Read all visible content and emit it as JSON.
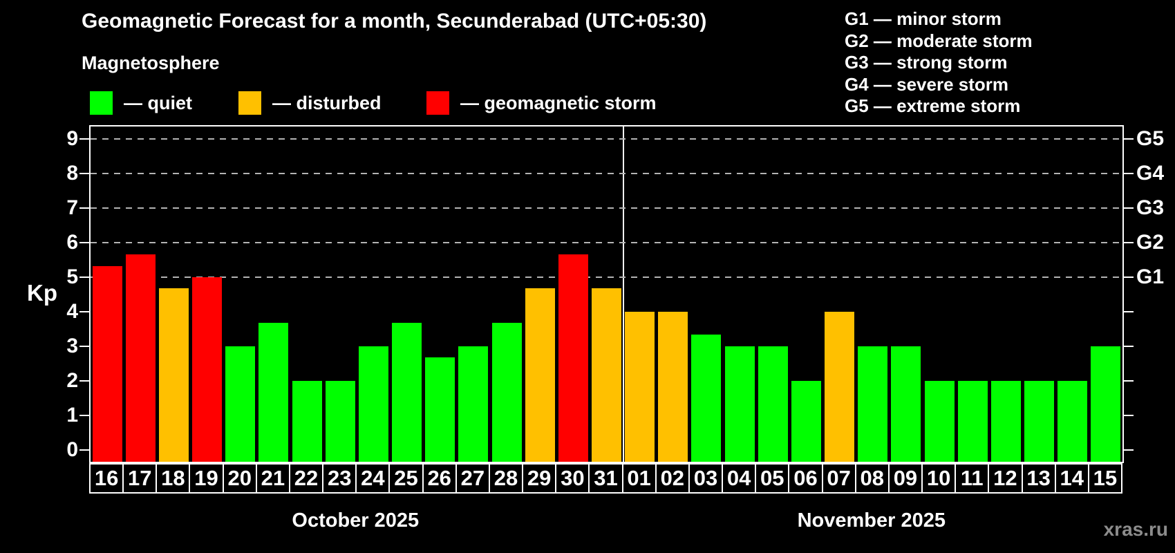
{
  "header": {
    "title": "Geomagnetic Forecast for a month, Secunderabad (UTC+05:30)",
    "subtitle": "Magnetosphere"
  },
  "magnetosphere_legend": [
    {
      "key": "quiet",
      "label": "— quiet",
      "color": "#00ff00"
    },
    {
      "key": "disturbed",
      "label": "— disturbed",
      "color": "#ffc000"
    },
    {
      "key": "storm",
      "label": "— geomagnetic storm",
      "color": "#ff0000"
    }
  ],
  "g_scale_legend": [
    "G1 — minor storm",
    "G2 — moderate storm",
    "G3 — strong storm",
    "G4 — severe storm",
    "G5 — extreme storm"
  ],
  "watermark": "xras.ru",
  "chart_data": {
    "type": "bar",
    "title": "Geomagnetic Forecast for a month, Secunderabad (UTC+05:30)",
    "ylabel": "Kp",
    "ylim": [
      0,
      9.4
    ],
    "yticks": [
      0,
      1,
      2,
      3,
      4,
      5,
      6,
      7,
      8,
      9
    ],
    "grid_levels_kp": [
      5,
      6,
      7,
      8,
      9
    ],
    "grid_style": "dashed",
    "legend_position": "top-left",
    "right_axis": [
      {
        "label": "G1",
        "kp": 5
      },
      {
        "label": "G2",
        "kp": 6
      },
      {
        "label": "G3",
        "kp": 7
      },
      {
        "label": "G4",
        "kp": 8
      },
      {
        "label": "G5",
        "kp": 9
      }
    ],
    "colors": {
      "quiet": "#00ff00",
      "disturbed": "#ffc000",
      "storm": "#ff0000"
    },
    "months": [
      {
        "label": "October 2025",
        "days": [
          {
            "day": "16",
            "kp": 5.33,
            "status": "storm"
          },
          {
            "day": "17",
            "kp": 5.67,
            "status": "storm"
          },
          {
            "day": "18",
            "kp": 4.67,
            "status": "disturbed"
          },
          {
            "day": "19",
            "kp": 5.0,
            "status": "storm"
          },
          {
            "day": "20",
            "kp": 3.0,
            "status": "quiet"
          },
          {
            "day": "21",
            "kp": 3.67,
            "status": "quiet"
          },
          {
            "day": "22",
            "kp": 2.0,
            "status": "quiet"
          },
          {
            "day": "23",
            "kp": 2.0,
            "status": "quiet"
          },
          {
            "day": "24",
            "kp": 3.0,
            "status": "quiet"
          },
          {
            "day": "25",
            "kp": 3.67,
            "status": "quiet"
          },
          {
            "day": "26",
            "kp": 2.67,
            "status": "quiet"
          },
          {
            "day": "27",
            "kp": 3.0,
            "status": "quiet"
          },
          {
            "day": "28",
            "kp": 3.67,
            "status": "quiet"
          },
          {
            "day": "29",
            "kp": 4.67,
            "status": "disturbed"
          },
          {
            "day": "30",
            "kp": 5.67,
            "status": "storm"
          },
          {
            "day": "31",
            "kp": 4.67,
            "status": "disturbed"
          }
        ]
      },
      {
        "label": "November 2025",
        "days": [
          {
            "day": "01",
            "kp": 4.0,
            "status": "disturbed"
          },
          {
            "day": "02",
            "kp": 4.0,
            "status": "disturbed"
          },
          {
            "day": "03",
            "kp": 3.33,
            "status": "quiet"
          },
          {
            "day": "04",
            "kp": 3.0,
            "status": "quiet"
          },
          {
            "day": "05",
            "kp": 3.0,
            "status": "quiet"
          },
          {
            "day": "06",
            "kp": 2.0,
            "status": "quiet"
          },
          {
            "day": "07",
            "kp": 4.0,
            "status": "disturbed"
          },
          {
            "day": "08",
            "kp": 3.0,
            "status": "quiet"
          },
          {
            "day": "09",
            "kp": 3.0,
            "status": "quiet"
          },
          {
            "day": "10",
            "kp": 2.0,
            "status": "quiet"
          },
          {
            "day": "11",
            "kp": 2.0,
            "status": "quiet"
          },
          {
            "day": "12",
            "kp": 2.0,
            "status": "quiet"
          },
          {
            "day": "13",
            "kp": 2.0,
            "status": "quiet"
          },
          {
            "day": "14",
            "kp": 2.0,
            "status": "quiet"
          },
          {
            "day": "15",
            "kp": 3.0,
            "status": "quiet"
          }
        ]
      }
    ]
  }
}
